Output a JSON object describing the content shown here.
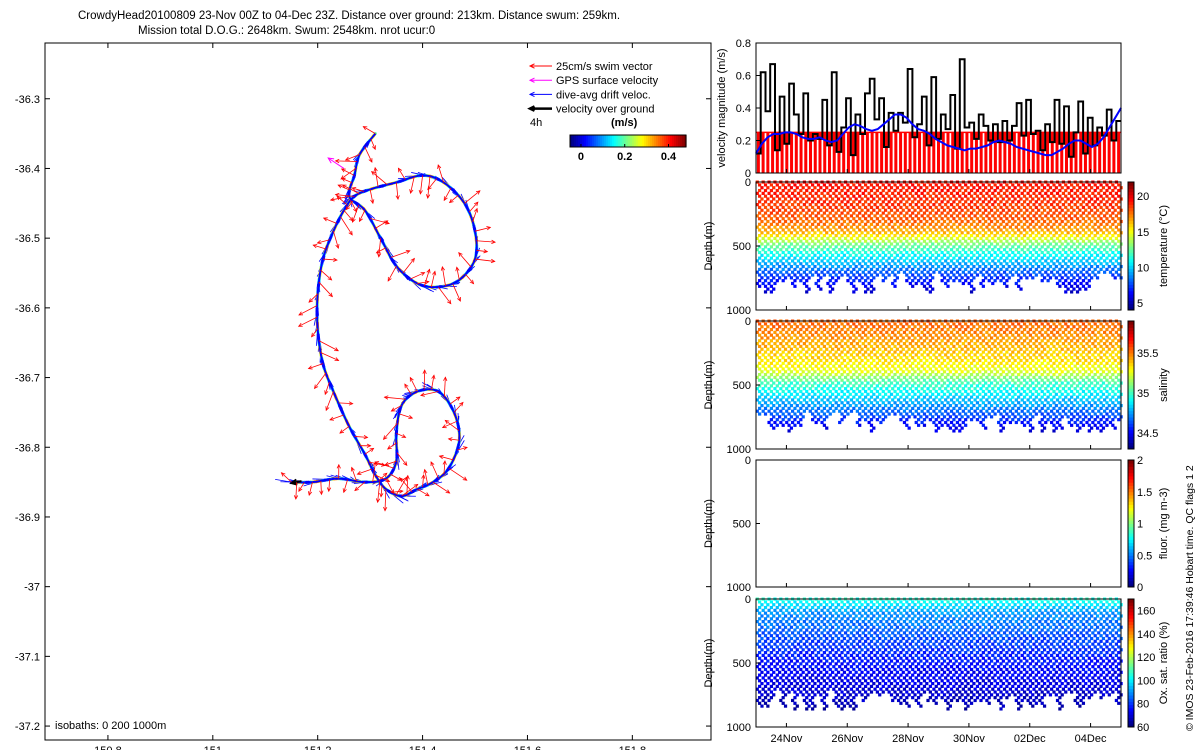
{
  "header": {
    "line1": "CrowdyHead20100809 23-Nov 00Z to 04-Dec 23Z. Distance over ground: 213km. Distance swum: 259km.",
    "line2": "Mission total D.O.G.: 2648km. Swum: 2548km. nrot ucur:0"
  },
  "credit": "© IMOS 23-Feb-2016 17:39:46 Hobart time. QC flags 1  2",
  "colors": {
    "swim": "#ff0000",
    "gps": "#ff00ff",
    "drift": "#0000ff",
    "ground": "#000000",
    "track_cmap": [
      "#00008f",
      "#0000ff",
      "#00a0ff",
      "#00ffd0",
      "#40ff40",
      "#ffff00",
      "#ff8000",
      "#ff0000",
      "#800000"
    ]
  },
  "chart_data": [
    {
      "id": "track_map",
      "type": "map-track",
      "legend": {
        "items": [
          "25cm/s swim vector",
          "GPS surface velocity",
          "dive-avg drift veloc.",
          "velocity over ground"
        ],
        "interval_label": "4h",
        "colorbar_title": "(m/s)",
        "colorbar_ticks": [
          0,
          0.2,
          0.4
        ],
        "colorbar_ticklabels": [
          "0",
          "0.2",
          "0.4"
        ],
        "colorbar_range": [
          -0.05,
          0.48
        ],
        "placement": "top-right"
      },
      "isobaths_label": "isobaths: 0   200   1000m",
      "xlim": [
        150.68,
        151.95
      ],
      "ylim": [
        -37.22,
        -36.22
      ],
      "xticks": [
        150.8,
        151,
        151.2,
        151.4,
        151.6,
        151.8
      ],
      "yticks": [
        -36.3,
        -36.4,
        -36.5,
        -36.6,
        -36.7,
        -36.8,
        -36.9,
        -37,
        -37.1,
        -37.2
      ],
      "track": [
        [
          151.31,
          -36.35
        ],
        [
          151.28,
          -36.38
        ],
        [
          151.27,
          -36.41
        ],
        [
          151.26,
          -36.44
        ],
        [
          151.29,
          -36.46
        ],
        [
          151.32,
          -36.5
        ],
        [
          151.35,
          -36.54
        ],
        [
          151.39,
          -36.565
        ],
        [
          151.43,
          -36.57
        ],
        [
          151.47,
          -36.56
        ],
        [
          151.5,
          -36.53
        ],
        [
          151.5,
          -36.49
        ],
        [
          151.48,
          -36.45
        ],
        [
          151.44,
          -36.42
        ],
        [
          151.4,
          -36.41
        ],
        [
          151.35,
          -36.42
        ],
        [
          151.3,
          -36.43
        ],
        [
          151.27,
          -36.44
        ],
        [
          151.25,
          -36.46
        ],
        [
          151.23,
          -36.49
        ],
        [
          151.21,
          -36.53
        ],
        [
          151.2,
          -36.58
        ],
        [
          151.2,
          -36.63
        ],
        [
          151.21,
          -36.68
        ],
        [
          151.23,
          -36.72
        ],
        [
          151.26,
          -36.77
        ],
        [
          151.29,
          -36.81
        ],
        [
          151.31,
          -36.84
        ],
        [
          151.33,
          -36.86
        ],
        [
          151.36,
          -36.87
        ],
        [
          151.39,
          -36.86
        ],
        [
          151.42,
          -36.85
        ],
        [
          151.45,
          -36.83
        ],
        [
          151.47,
          -36.79
        ],
        [
          151.46,
          -36.75
        ],
        [
          151.43,
          -36.72
        ],
        [
          151.39,
          -36.72
        ],
        [
          151.36,
          -36.74
        ],
        [
          151.35,
          -36.78
        ],
        [
          151.35,
          -36.82
        ],
        [
          151.33,
          -36.845
        ],
        [
          151.29,
          -36.85
        ],
        [
          151.24,
          -36.845
        ],
        [
          151.19,
          -36.85
        ],
        [
          151.15,
          -36.85
        ]
      ],
      "gps_vector": {
        "from": [
          151.25,
          -36.4
        ],
        "to": [
          151.22,
          -36.385
        ]
      }
    },
    {
      "id": "velocity",
      "type": "bar+line",
      "ylabel": "velocity magnitude (m/s)",
      "ylim": [
        0,
        0.8
      ],
      "yticks": [
        0,
        0.2,
        0.4,
        0.6,
        0.8
      ],
      "swim_bar_level": 0.25,
      "ground_values": [
        0.12,
        0.62,
        0.38,
        0.67,
        0.14,
        0.47,
        0.18,
        0.55,
        0.36,
        0.24,
        0.49,
        0.2,
        0.24,
        0.21,
        0.45,
        0.17,
        0.62,
        0.13,
        0.28,
        0.46,
        0.11,
        0.36,
        0.24,
        0.49,
        0.58,
        0.33,
        0.46,
        0.16,
        0.37,
        0.26,
        0.37,
        0.31,
        0.64,
        0.22,
        0.3,
        0.47,
        0.17,
        0.59,
        0.21,
        0.36,
        0.27,
        0.48,
        0.15,
        0.7,
        0.28,
        0.31,
        0.21,
        0.36,
        0.29,
        0.2,
        0.3,
        0.19,
        0.32,
        0.2,
        0.29,
        0.43,
        0.23,
        0.45,
        0.24,
        0.26,
        0.14,
        0.3,
        0.19,
        0.45,
        0.18,
        0.41,
        0.1,
        0.25,
        0.44,
        0.12,
        0.34,
        0.17,
        0.28,
        0.23,
        0.39,
        0.2,
        0.32
      ],
      "drift_values": [
        0.12,
        0.18,
        0.22,
        0.24,
        0.24,
        0.25,
        0.25,
        0.24,
        0.22,
        0.21,
        0.21,
        0.22,
        0.2,
        0.19,
        0.2,
        0.24,
        0.28,
        0.3,
        0.29,
        0.27,
        0.26,
        0.27,
        0.3,
        0.33,
        0.36,
        0.36,
        0.34,
        0.3,
        0.27,
        0.26,
        0.24,
        0.21,
        0.19,
        0.17,
        0.16,
        0.15,
        0.14,
        0.15,
        0.15,
        0.16,
        0.17,
        0.19,
        0.2,
        0.19,
        0.18,
        0.16,
        0.15,
        0.14,
        0.13,
        0.12,
        0.11,
        0.11,
        0.13,
        0.15,
        0.18,
        0.2,
        0.2,
        0.18,
        0.16,
        0.18,
        0.22,
        0.28,
        0.34,
        0.4
      ],
      "drift_x_fraction_note": ""
    },
    {
      "id": "temperature",
      "type": "heatmap",
      "ylabel": "Depth (m)",
      "clabel": "temperature (°C)",
      "ylim": [
        1000,
        0
      ],
      "yticks": [
        0,
        500,
        1000
      ],
      "clim": [
        4,
        22
      ],
      "cticks": [
        5,
        10,
        15,
        20
      ],
      "profile_depth": [
        [
          0,
          19.5
        ],
        [
          150,
          19
        ],
        [
          300,
          18
        ],
        [
          400,
          16.5
        ],
        [
          480,
          13
        ],
        [
          560,
          11
        ],
        [
          650,
          9
        ],
        [
          750,
          7
        ],
        [
          850,
          5.5
        ]
      ],
      "max_depth_range": [
        720,
        880
      ]
    },
    {
      "id": "salinity",
      "type": "heatmap",
      "ylabel": "Depth (m)",
      "clabel": "salinity",
      "ylim": [
        1000,
        0
      ],
      "yticks": [
        0,
        500,
        1000
      ],
      "clim": [
        34.3,
        35.9
      ],
      "cticks": [
        34.5,
        35,
        35.5
      ],
      "profile_depth": [
        [
          0,
          35.55
        ],
        [
          150,
          35.45
        ],
        [
          300,
          35.35
        ],
        [
          400,
          35.25
        ],
        [
          480,
          35.0
        ],
        [
          560,
          34.9
        ],
        [
          650,
          34.75
        ],
        [
          750,
          34.6
        ],
        [
          850,
          34.45
        ]
      ],
      "max_depth_range": [
        720,
        880
      ]
    },
    {
      "id": "fluorescence",
      "type": "heatmap",
      "ylabel": "Depth (m)",
      "clabel": "fluor. (mg m-3)",
      "ylim": [
        1000,
        0
      ],
      "yticks": [
        0,
        500,
        1000
      ],
      "clim": [
        0,
        2
      ],
      "cticks": [
        0,
        0.5,
        1,
        1.5,
        2
      ],
      "profile_depth": [],
      "max_depth_range": [
        0,
        0
      ]
    },
    {
      "id": "oxygen",
      "type": "heatmap",
      "ylabel": "Depth (m)",
      "clabel": "Ox. sat. ratio (%)",
      "ylim": [
        1000,
        0
      ],
      "yticks": [
        0,
        500,
        1000
      ],
      "clim": [
        60,
        170
      ],
      "cticks": [
        60,
        80,
        100,
        120,
        140,
        160
      ],
      "profile_depth": [
        [
          0,
          105
        ],
        [
          100,
          90
        ],
        [
          300,
          82
        ],
        [
          500,
          75
        ],
        [
          700,
          70
        ],
        [
          850,
          65
        ]
      ],
      "max_depth_range": [
        720,
        880
      ]
    }
  ],
  "time_axis": {
    "start_day": 0,
    "end_day": 12,
    "ticks": [
      {
        "day": 1,
        "label": "24Nov"
      },
      {
        "day": 3,
        "label": "26Nov"
      },
      {
        "day": 5,
        "label": "28Nov"
      },
      {
        "day": 7,
        "label": "30Nov"
      },
      {
        "day": 9,
        "label": "02Dec"
      },
      {
        "day": 11,
        "label": "04Dec"
      }
    ]
  }
}
